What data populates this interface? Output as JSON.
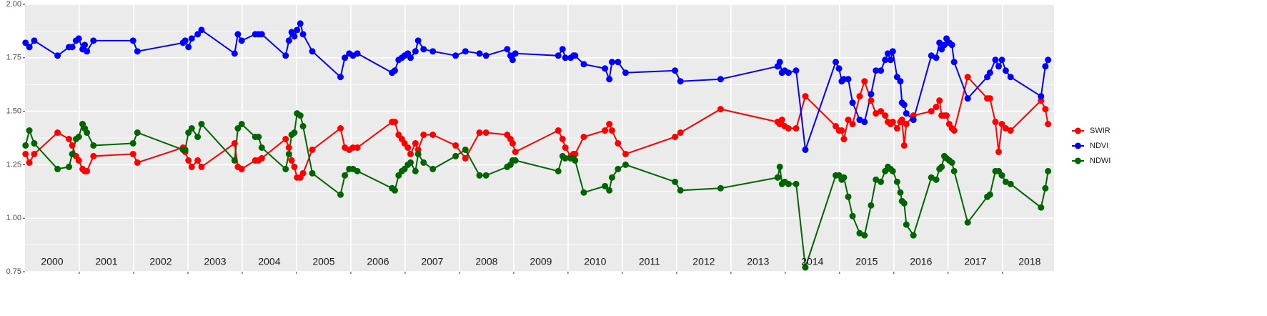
{
  "chart_data": {
    "type": "line",
    "x": [
      2000.01,
      2000.08,
      2000.17,
      2000.6,
      2000.81,
      2000.87,
      2000.94,
      2000.99,
      2001.06,
      2001.1,
      2001.14,
      2001.26,
      2001.99,
      2002.07,
      2002.91,
      2002.95,
      2003.01,
      2003.07,
      2003.18,
      2003.25,
      2003.86,
      2003.92,
      2003.99,
      2004.24,
      2004.3,
      2004.36,
      2004.8,
      2004.86,
      2004.91,
      2004.96,
      2005.01,
      2005.07,
      2005.12,
      2005.29,
      2005.81,
      2005.89,
      2005.97,
      2006.04,
      2006.12,
      2006.76,
      2006.81,
      2006.88,
      2006.94,
      2006.99,
      2007.05,
      2007.1,
      2007.19,
      2007.24,
      2007.34,
      2007.51,
      2007.93,
      2008.11,
      2008.37,
      2008.49,
      2008.88,
      2008.94,
      2008.98,
      2009.03,
      2009.82,
      2009.9,
      2009.95,
      2010.05,
      2010.1,
      2010.13,
      2010.29,
      2010.68,
      2010.76,
      2010.81,
      2010.92,
      2011.06,
      2011.97,
      2012.07,
      2012.81,
      2013.86,
      2013.9,
      2013.94,
      2013.99,
      2014.06,
      2014.2,
      2014.37,
      2014.93,
      2014.99,
      2015.04,
      2015.08,
      2015.16,
      2015.24,
      2015.37,
      2015.46,
      2015.58,
      2015.67,
      2015.76,
      2015.84,
      2015.89,
      2015.94,
      2015.98,
      2016.06,
      2016.12,
      2016.15,
      2016.19,
      2016.23,
      2016.36,
      2016.69,
      2016.78,
      2016.84,
      2016.88,
      2016.93,
      2016.97,
      2017.02,
      2017.07,
      2017.11,
      2017.36,
      2017.72,
      2017.77,
      2017.87,
      2017.93,
      2017.99,
      2018.06,
      2018.15,
      2018.71,
      2018.79,
      2018.84
    ],
    "series": [
      {
        "name": "SWIR",
        "color": "#ff0000",
        "values": [
          1.3,
          1.26,
          1.3,
          1.4,
          1.37,
          1.34,
          1.29,
          1.27,
          1.23,
          1.22,
          1.22,
          1.29,
          1.3,
          1.26,
          1.33,
          1.31,
          1.27,
          1.24,
          1.27,
          1.24,
          1.35,
          1.24,
          1.23,
          1.27,
          1.27,
          1.28,
          1.37,
          1.33,
          1.27,
          1.24,
          1.19,
          1.19,
          1.21,
          1.32,
          1.42,
          1.33,
          1.32,
          1.33,
          1.33,
          1.45,
          1.45,
          1.39,
          1.37,
          1.35,
          1.33,
          1.3,
          1.35,
          1.32,
          1.39,
          1.39,
          1.34,
          1.28,
          1.4,
          1.4,
          1.39,
          1.37,
          1.35,
          1.31,
          1.41,
          1.37,
          1.33,
          1.29,
          1.3,
          1.3,
          1.38,
          1.41,
          1.44,
          1.41,
          1.35,
          1.3,
          1.38,
          1.4,
          1.51,
          1.45,
          1.44,
          1.46,
          1.43,
          1.42,
          1.42,
          1.57,
          1.43,
          1.41,
          1.41,
          1.37,
          1.46,
          1.44,
          1.57,
          1.64,
          1.55,
          1.49,
          1.5,
          1.48,
          1.45,
          1.44,
          1.45,
          1.42,
          1.45,
          1.46,
          1.34,
          1.44,
          1.48,
          1.5,
          1.52,
          1.55,
          1.48,
          1.48,
          1.48,
          1.44,
          1.42,
          1.41,
          1.66,
          1.56,
          1.56,
          1.45,
          1.31,
          1.44,
          1.42,
          1.41,
          1.55,
          1.51,
          1.44
        ]
      },
      {
        "name": "NDVI",
        "color": "#0000ff",
        "values": [
          1.82,
          1.8,
          1.83,
          1.76,
          1.8,
          1.8,
          1.83,
          1.84,
          1.79,
          1.81,
          1.78,
          1.83,
          1.83,
          1.78,
          1.82,
          1.83,
          1.8,
          1.84,
          1.86,
          1.88,
          1.77,
          1.86,
          1.83,
          1.86,
          1.86,
          1.86,
          1.76,
          1.83,
          1.87,
          1.85,
          1.88,
          1.91,
          1.86,
          1.78,
          1.66,
          1.75,
          1.77,
          1.76,
          1.77,
          1.68,
          1.69,
          1.74,
          1.75,
          1.76,
          1.77,
          1.75,
          1.78,
          1.83,
          1.79,
          1.78,
          1.76,
          1.78,
          1.77,
          1.76,
          1.79,
          1.76,
          1.74,
          1.77,
          1.76,
          1.79,
          1.75,
          1.75,
          1.76,
          1.76,
          1.72,
          1.7,
          1.65,
          1.73,
          1.73,
          1.68,
          1.69,
          1.64,
          1.65,
          1.71,
          1.73,
          1.68,
          1.69,
          1.68,
          1.69,
          1.32,
          1.73,
          1.7,
          1.64,
          1.65,
          1.65,
          1.54,
          1.46,
          1.45,
          1.58,
          1.69,
          1.69,
          1.74,
          1.77,
          1.74,
          1.78,
          1.66,
          1.64,
          1.54,
          1.53,
          1.49,
          1.46,
          1.76,
          1.75,
          1.82,
          1.79,
          1.81,
          1.84,
          1.82,
          1.81,
          1.73,
          1.56,
          1.66,
          1.68,
          1.74,
          1.71,
          1.74,
          1.69,
          1.66,
          1.57,
          1.71,
          1.74
        ]
      },
      {
        "name": "NDWI",
        "color": "#006400",
        "values": [
          1.34,
          1.41,
          1.35,
          1.23,
          1.24,
          1.3,
          1.37,
          1.38,
          1.44,
          1.42,
          1.4,
          1.34,
          1.35,
          1.4,
          1.32,
          1.32,
          1.4,
          1.42,
          1.38,
          1.44,
          1.27,
          1.42,
          1.44,
          1.38,
          1.38,
          1.33,
          1.23,
          1.3,
          1.39,
          1.4,
          1.49,
          1.48,
          1.43,
          1.21,
          1.11,
          1.2,
          1.23,
          1.23,
          1.22,
          1.14,
          1.13,
          1.2,
          1.22,
          1.23,
          1.25,
          1.26,
          1.22,
          1.3,
          1.26,
          1.23,
          1.29,
          1.32,
          1.2,
          1.2,
          1.24,
          1.25,
          1.27,
          1.27,
          1.22,
          1.29,
          1.28,
          1.28,
          1.28,
          1.27,
          1.12,
          1.15,
          1.13,
          1.19,
          1.23,
          1.25,
          1.17,
          1.13,
          1.14,
          1.19,
          1.24,
          1.16,
          1.17,
          1.16,
          1.16,
          0.77,
          1.2,
          1.2,
          1.18,
          1.19,
          1.1,
          1.01,
          0.93,
          0.92,
          1.06,
          1.18,
          1.17,
          1.22,
          1.24,
          1.23,
          1.22,
          1.17,
          1.12,
          1.08,
          1.07,
          0.97,
          0.92,
          1.19,
          1.18,
          1.23,
          1.24,
          1.29,
          1.28,
          1.27,
          1.26,
          1.22,
          0.98,
          1.1,
          1.11,
          1.22,
          1.22,
          1.2,
          1.17,
          1.16,
          1.05,
          1.14,
          1.22
        ]
      }
    ],
    "xlim": [
      2000,
      2018.95
    ],
    "xgrid": [
      2001,
      2002,
      2003,
      2004,
      2005,
      2006,
      2007,
      2008,
      2009,
      2010,
      2011,
      2012,
      2013,
      2014,
      2015,
      2016,
      2017,
      2018
    ],
    "xticks": [
      {
        "value": 2000.5,
        "label": "2000"
      },
      {
        "value": 2001.5,
        "label": "2001"
      },
      {
        "value": 2002.5,
        "label": "2002"
      },
      {
        "value": 2003.5,
        "label": "2003"
      },
      {
        "value": 2004.5,
        "label": "2004"
      },
      {
        "value": 2005.5,
        "label": "2005"
      },
      {
        "value": 2006.5,
        "label": "2006"
      },
      {
        "value": 2007.5,
        "label": "2007"
      },
      {
        "value": 2008.5,
        "label": "2008"
      },
      {
        "value": 2009.5,
        "label": "2009"
      },
      {
        "value": 2010.5,
        "label": "2010"
      },
      {
        "value": 2011.5,
        "label": "2011"
      },
      {
        "value": 2012.5,
        "label": "2012"
      },
      {
        "value": 2013.5,
        "label": "2013"
      },
      {
        "value": 2014.5,
        "label": "2014"
      },
      {
        "value": 2015.5,
        "label": "2015"
      },
      {
        "value": 2016.5,
        "label": "2016"
      },
      {
        "value": 2017.5,
        "label": "2017"
      },
      {
        "value": 2018.5,
        "label": "2018"
      }
    ],
    "ylim": [
      0.75,
      2.0
    ],
    "yticks": [
      0.75,
      {
        "value": 1.0,
        "label": "1.00"
      },
      1.25,
      {
        "value": 1.5,
        "label": "1.50"
      },
      1.75,
      {
        "value": 2.0,
        "label": "2.00"
      }
    ],
    "yminor": [
      0.875,
      1.125,
      1.375,
      1.625,
      1.875
    ],
    "grid": true,
    "legend": "right"
  }
}
